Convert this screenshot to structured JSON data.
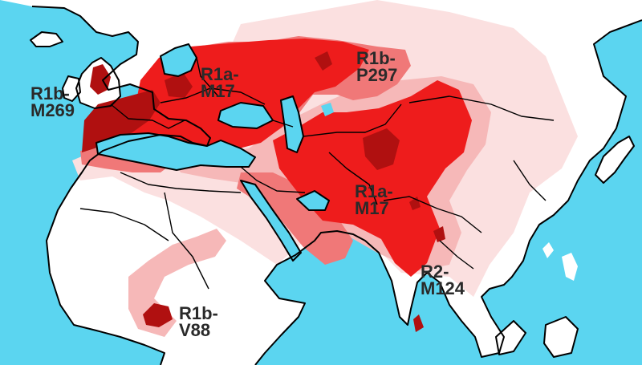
{
  "colors": {
    "sea": "#5bd5f0",
    "land": "#ffffff",
    "very_low": "#fbe0e0",
    "low": "#f6b8b8",
    "medium": "#f07878",
    "high": "#ee1c1c",
    "very_high": "#b01010",
    "border": "#000000"
  },
  "labels": [
    {
      "id": "m269",
      "line1": "R1b-",
      "line2": "M269"
    },
    {
      "id": "m17-europe",
      "line1": "R1a-",
      "line2": "M17"
    },
    {
      "id": "p297",
      "line1": "R1b-",
      "line2": "P297"
    },
    {
      "id": "m17-asia",
      "line1": "R1a-",
      "line2": "M17"
    },
    {
      "id": "m124",
      "line1": "R2-",
      "line2": "M124"
    },
    {
      "id": "v88",
      "line1": "R1b-",
      "line2": "V88"
    }
  ]
}
